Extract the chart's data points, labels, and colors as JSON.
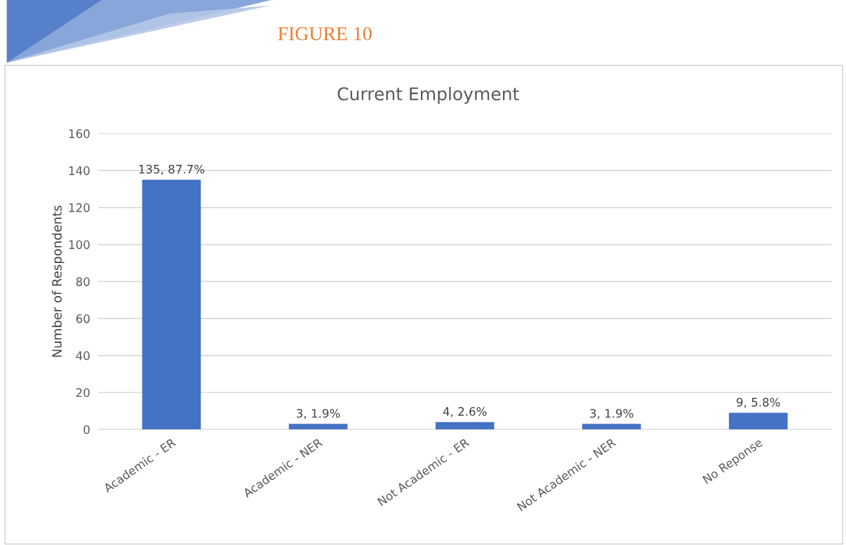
{
  "chart_data": {
    "type": "bar",
    "title": "Current Employment",
    "ylabel": "Number of Respondents",
    "annotations": [
      "FIGURE 10"
    ],
    "categories": [
      "Academic - ER",
      "Academic - NER",
      "Not Academic - ER",
      "Not Academic - NER",
      "No Reponse"
    ],
    "values": [
      135,
      3,
      4,
      3,
      9
    ],
    "value_labels": [
      "135, 87.7%",
      "3, 1.9%",
      "4, 2.6%",
      "3, 1.9%",
      "9, 5.8%"
    ],
    "color": "#4472c4",
    "ylim": [
      0,
      160
    ],
    "yticks": [
      0,
      20,
      40,
      60,
      80,
      100,
      120,
      140,
      160
    ],
    "grid": "y",
    "legend": false
  }
}
